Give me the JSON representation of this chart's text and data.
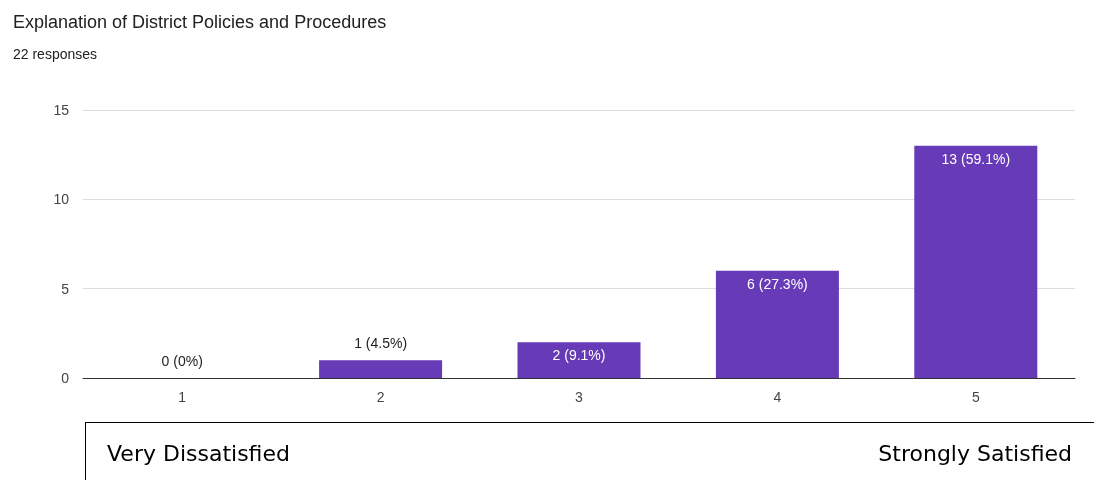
{
  "chart_data": {
    "type": "bar",
    "title": "Explanation of District Policies and Procedures",
    "subtitle": "22 responses",
    "categories": [
      "1",
      "2",
      "3",
      "4",
      "5"
    ],
    "values": [
      0,
      1,
      2,
      6,
      13
    ],
    "value_labels": [
      "0 (0%)",
      "1 (4.5%)",
      "2 (9.1%)",
      "6 (27.3%)",
      "13 (59.1%)"
    ],
    "color": "#673ab7",
    "ylim": [
      0,
      15
    ],
    "yticks": [
      0,
      5,
      10,
      15
    ],
    "grid": true,
    "annotations": [
      "Very Dissatisfied",
      "Strongly Satisfied"
    ]
  }
}
